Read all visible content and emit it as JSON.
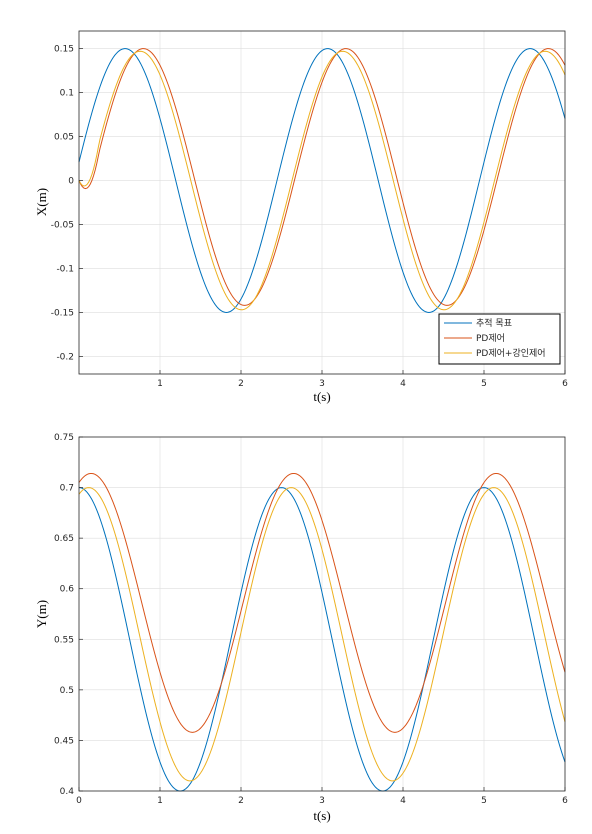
{
  "chart_data": [
    {
      "type": "line",
      "xlabel": "t(s)",
      "ylabel": "X(m)",
      "xlim": [
        0,
        6
      ],
      "ylim": [
        -0.22,
        0.17
      ],
      "xticks": [
        1,
        2,
        3,
        4,
        5,
        6
      ],
      "xtick_labels": [
        "1",
        "2",
        "3",
        "4",
        "5",
        "6"
      ],
      "yticks": [
        0.15,
        0.1,
        0.05,
        0,
        -0.05,
        -0.1,
        -0.15,
        -0.2
      ],
      "ytick_labels": [
        "0.15",
        "0.1",
        "0.05",
        "0",
        "-0.05",
        "-0.1",
        "-0.15",
        "-0.2"
      ],
      "grid": true,
      "legend_position": "bottom-right",
      "series": [
        {
          "name": "추적 목표",
          "color": "#0072BD",
          "amplitude": 0.15,
          "period": 2.5,
          "offset": 0.0,
          "delay": 0.0,
          "x": [
            0,
            0.63,
            1.88,
            3.13,
            4.38,
            5.63,
            6
          ],
          "y": [
            0.02,
            0.15,
            -0.15,
            0.15,
            -0.15,
            0.15,
            0.074
          ]
        },
        {
          "name": "PD제어",
          "color": "#D95319",
          "amplitude": 0.146,
          "period": 2.5,
          "offset": 0.004,
          "delay": 0.17,
          "x": [
            0,
            0.8,
            2.03,
            3.3,
            4.53,
            5.8,
            6
          ],
          "y": [
            0.0,
            0.146,
            -0.138,
            0.156,
            -0.142,
            0.156,
            0.13
          ]
        },
        {
          "name": "PD제어+강인제어",
          "color": "#EDB120",
          "amplitude": 0.147,
          "period": 2.5,
          "offset": 0.0,
          "delay": 0.13,
          "x": [
            0,
            0.76,
            2.0,
            3.26,
            4.5,
            5.76,
            6
          ],
          "y": [
            0.0,
            0.147,
            -0.145,
            0.15,
            -0.145,
            0.15,
            0.105
          ]
        }
      ]
    },
    {
      "type": "line",
      "xlabel": "t(s)",
      "ylabel": "Y(m)",
      "xlim": [
        0,
        6
      ],
      "ylim": [
        0.4,
        0.75
      ],
      "xticks": [
        0,
        1,
        2,
        3,
        4,
        5,
        6
      ],
      "xtick_labels": [
        "0",
        "1",
        "2",
        "3",
        "4",
        "5",
        "6"
      ],
      "yticks": [
        0.75,
        0.7,
        0.65,
        0.6,
        0.55,
        0.5,
        0.45,
        0.4
      ],
      "ytick_labels": [
        "0.75",
        "0.7",
        "0.65",
        "0.6",
        "0.55",
        "0.5",
        "0.45",
        "0.4"
      ],
      "grid": true,
      "series": [
        {
          "color": "#0072BD",
          "center": 0.55,
          "amplitude": 0.15,
          "period": 2.5,
          "delay": 0.0,
          "x": [
            0,
            1.25,
            2.5,
            3.75,
            5.0,
            6
          ],
          "y": [
            0.7,
            0.4,
            0.7,
            0.4,
            0.7,
            0.43
          ]
        },
        {
          "color": "#D95319",
          "center": 0.586,
          "amplitude": 0.128,
          "period": 2.5,
          "delay": 0.15,
          "x": [
            0.13,
            1.38,
            2.65,
            3.88,
            5.15,
            6
          ],
          "y": [
            0.709,
            0.458,
            0.715,
            0.46,
            0.715,
            0.52
          ]
        },
        {
          "color": "#EDB120",
          "center": 0.555,
          "amplitude": 0.145,
          "period": 2.5,
          "delay": 0.12,
          "x": [
            0.1,
            1.35,
            2.6,
            3.85,
            5.1,
            6
          ],
          "y": [
            0.7,
            0.41,
            0.7,
            0.41,
            0.7,
            0.465
          ]
        }
      ]
    }
  ]
}
